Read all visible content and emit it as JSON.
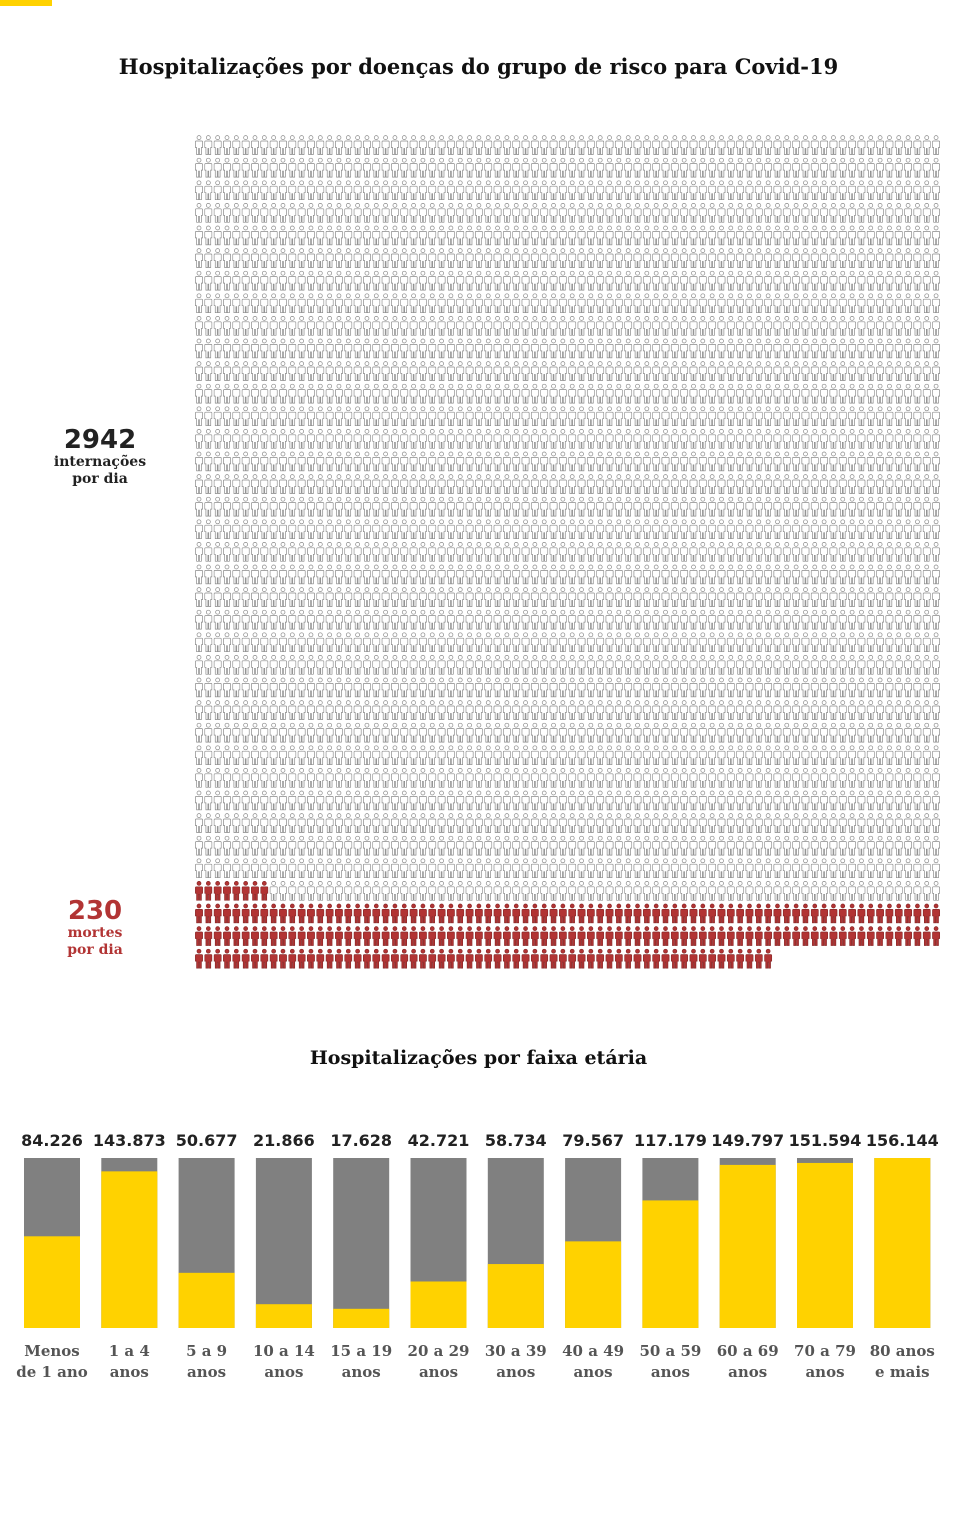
{
  "titles": {
    "main": "Hospitalizações por doenças do grupo de risco para Covid-19",
    "age": "Hospitalizações por faixa etária"
  },
  "colors": {
    "accent": "#ffd200",
    "bar_bg": "#808080",
    "death": "#b23434",
    "icon_outline": "#888888"
  },
  "chart_data": [
    {
      "type": "pictogram",
      "icon": "person-icon",
      "icons_per_row": 80,
      "total": 2942,
      "highlighted": 230,
      "labels": {
        "total_value": "2942",
        "total_line1": "internações",
        "total_line2": "por dia",
        "highlight_value": "230",
        "highlight_line1": "mortes",
        "highlight_line2": "por dia"
      }
    },
    {
      "type": "bar",
      "title": "Hospitalizações por faixa etária",
      "categories": [
        [
          "Menos",
          "de 1 ano"
        ],
        [
          "1 a 4",
          "anos"
        ],
        [
          "5 a 9",
          "anos"
        ],
        [
          "10 a 14",
          "anos"
        ],
        [
          "15 a 19",
          "anos"
        ],
        [
          "20 a 29",
          "anos"
        ],
        [
          "30 a 39",
          "anos"
        ],
        [
          "40 a 49",
          "anos"
        ],
        [
          "50 a 59",
          "anos"
        ],
        [
          "60 a 69",
          "anos"
        ],
        [
          "70 a 79",
          "anos"
        ],
        [
          "80 anos",
          "e mais"
        ]
      ],
      "values": [
        84226,
        143873,
        50677,
        21866,
        17628,
        42721,
        58734,
        79567,
        117179,
        149797,
        151594,
        156144
      ],
      "value_labels": [
        "84.226",
        "143.873",
        "50.677",
        "21.866",
        "17.628",
        "42.721",
        "58.734",
        "79.567",
        "117.179",
        "149.797",
        "151.594",
        "156.144"
      ],
      "ylim": [
        0,
        156144
      ]
    }
  ]
}
